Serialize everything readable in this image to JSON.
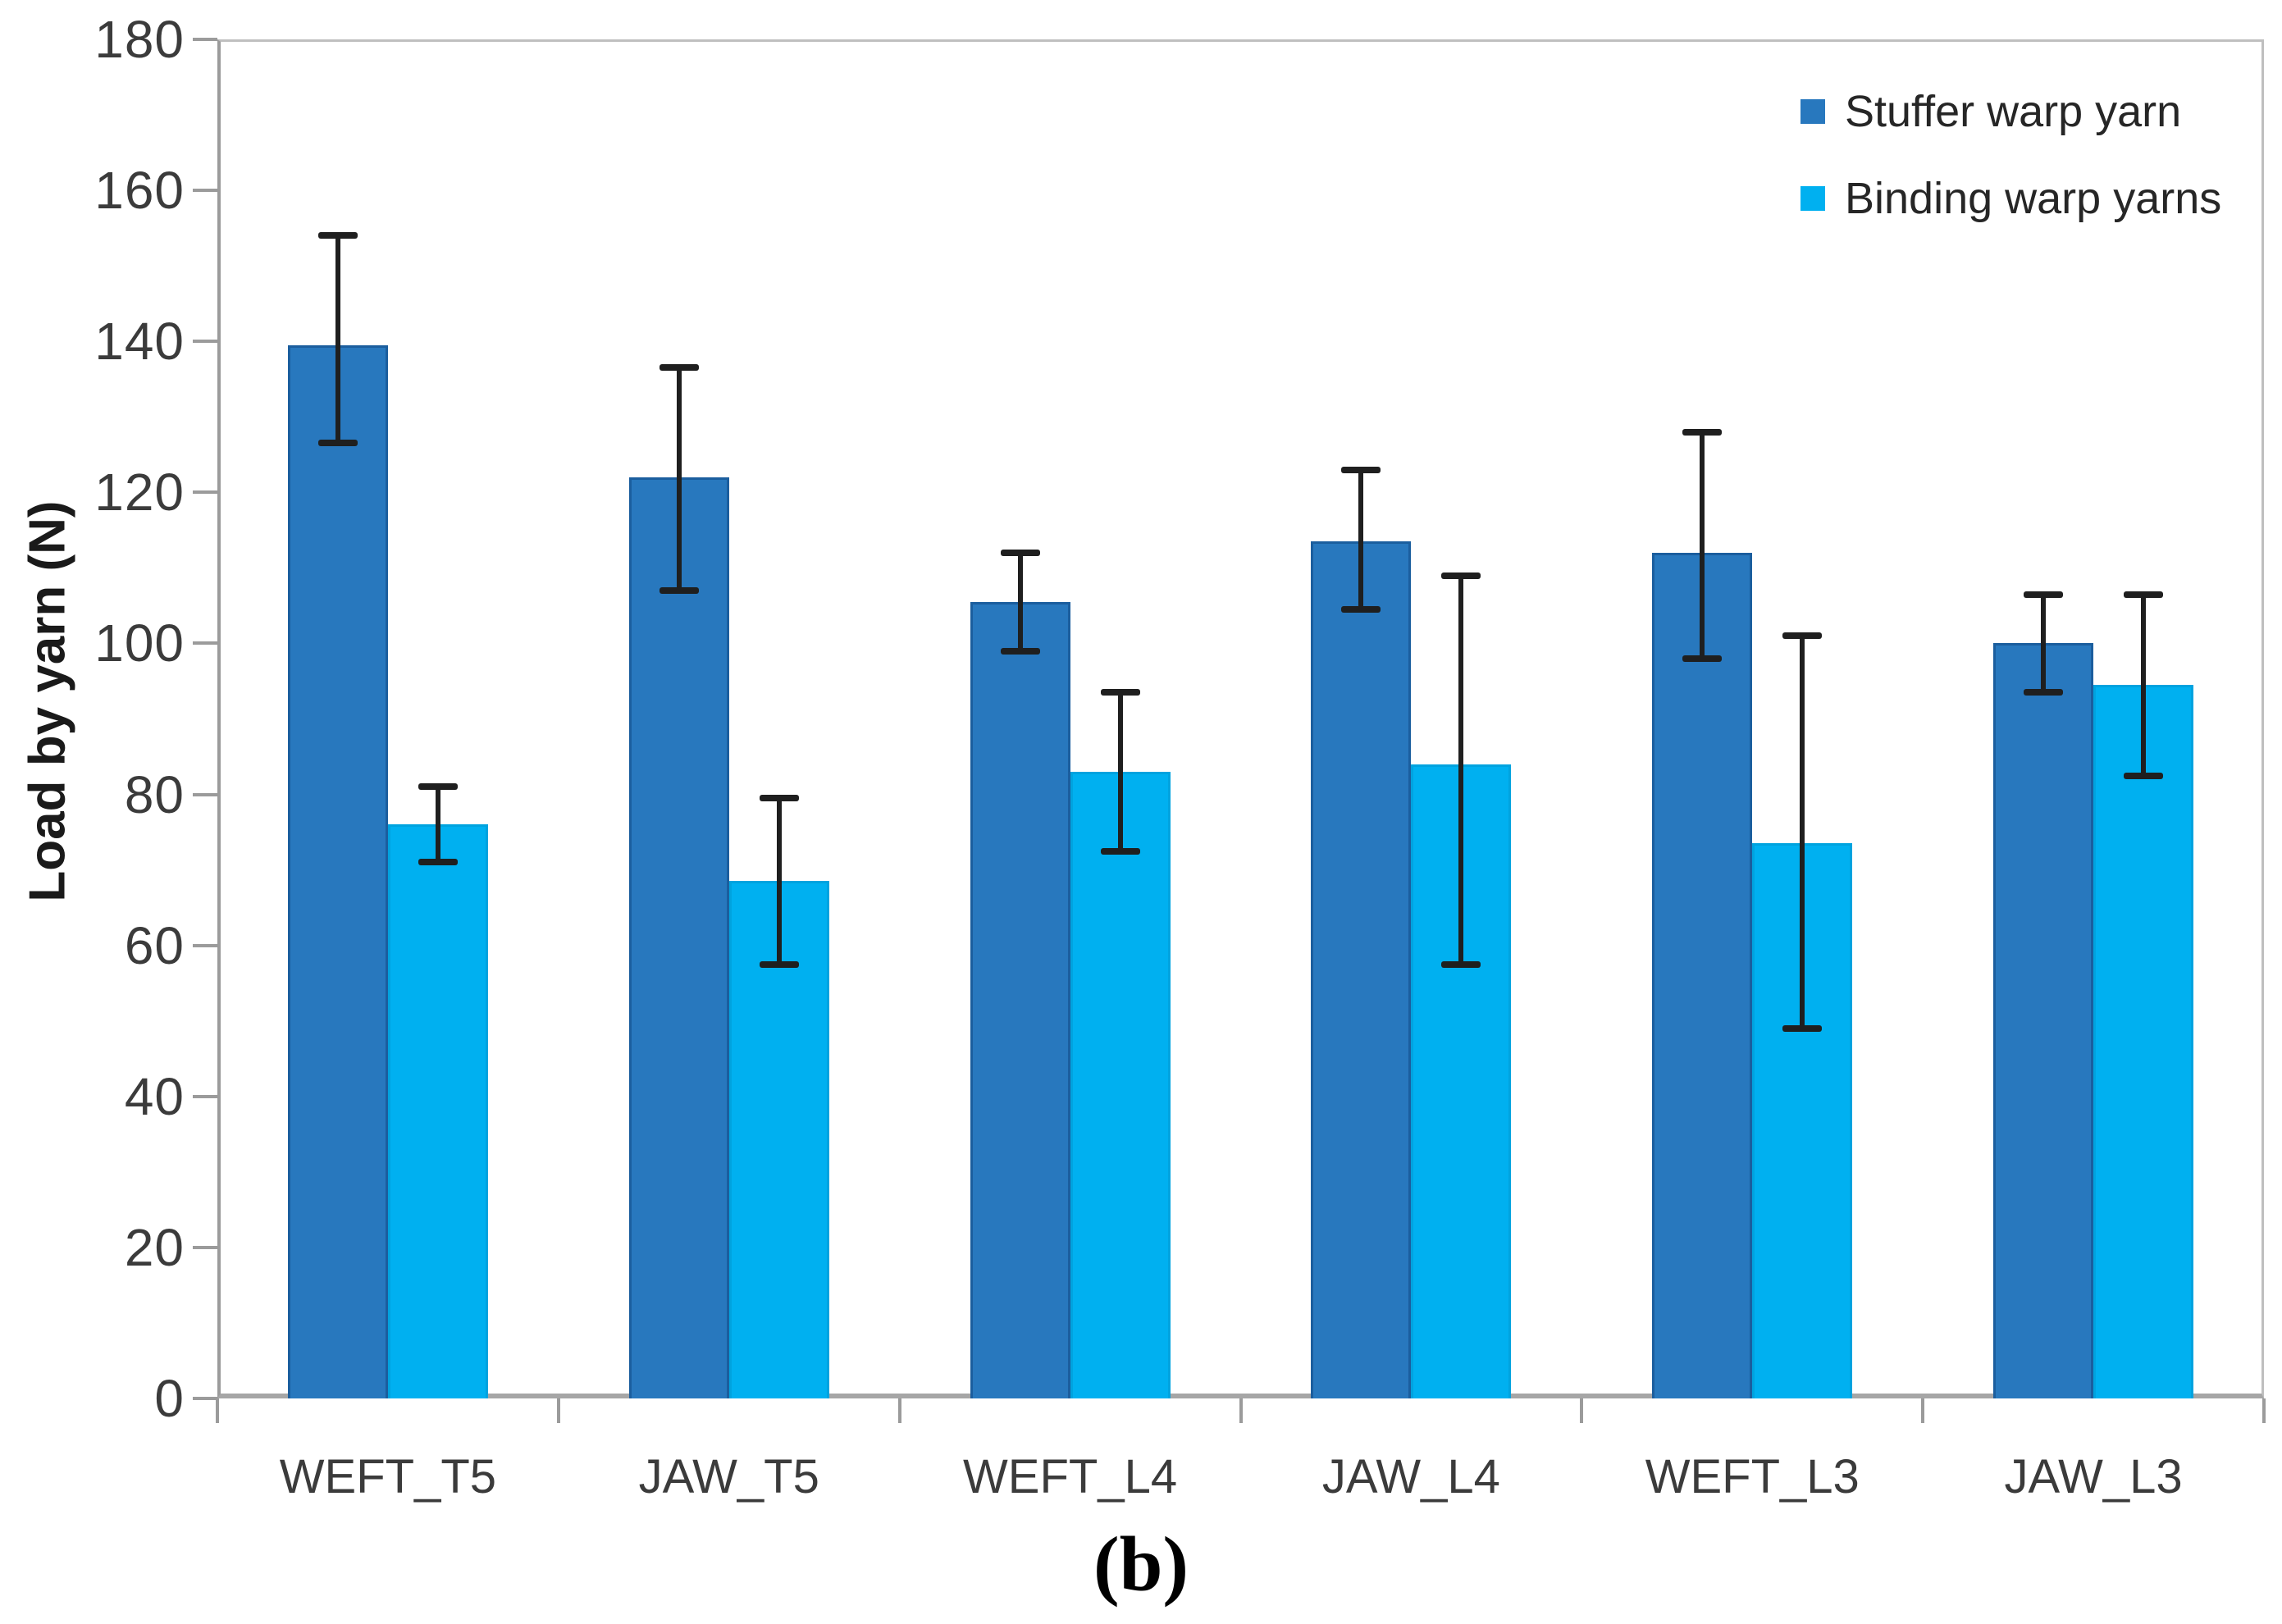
{
  "figure": {
    "caption": "(b)"
  },
  "colors": {
    "stuffer_fill": "#2878BE",
    "stuffer_edge": "#1B5E9E",
    "binding_fill": "#00B0F0",
    "binding_edge": "#00A3DF",
    "error_bar": "#1F1F1F",
    "axis_line": "#9B9B9B",
    "frame_line": "#BFBFBF",
    "text": "#3B3B3B"
  },
  "legend": {
    "position": "top-right",
    "items": [
      {
        "label": "Stuffer warp yarn",
        "color": "#2878BE"
      },
      {
        "label": "Binding warp yarns",
        "color": "#00B0F0"
      }
    ]
  },
  "chart_data": {
    "type": "bar",
    "title": "",
    "xlabel": "",
    "ylabel": "Load by yarn (N)",
    "ylim": [
      0,
      180
    ],
    "ytick_step": 20,
    "grid": false,
    "legend_position": "top-right",
    "categories": [
      "WEFT_T5",
      "JAW_T5",
      "WEFT_L4",
      "JAW_L4",
      "WEFT_L3",
      "JAW_L3"
    ],
    "series": [
      {
        "name": "Stuffer warp yarn",
        "color": "#2878BE",
        "values": [
          139.5,
          122,
          105.5,
          113.5,
          112,
          100
        ],
        "error_low": [
          126.5,
          107,
          99,
          104.5,
          98,
          93.5
        ],
        "error_high": [
          154,
          136.5,
          112,
          123,
          128,
          106.5
        ]
      },
      {
        "name": "Binding warp yarns",
        "color": "#00B0F0",
        "values": [
          76,
          68.5,
          83,
          84,
          73.5,
          94.5
        ],
        "error_low": [
          71,
          57.5,
          72.5,
          57.5,
          49,
          82.5
        ],
        "error_high": [
          81,
          79.5,
          93.5,
          109,
          101,
          106.5
        ]
      }
    ]
  }
}
